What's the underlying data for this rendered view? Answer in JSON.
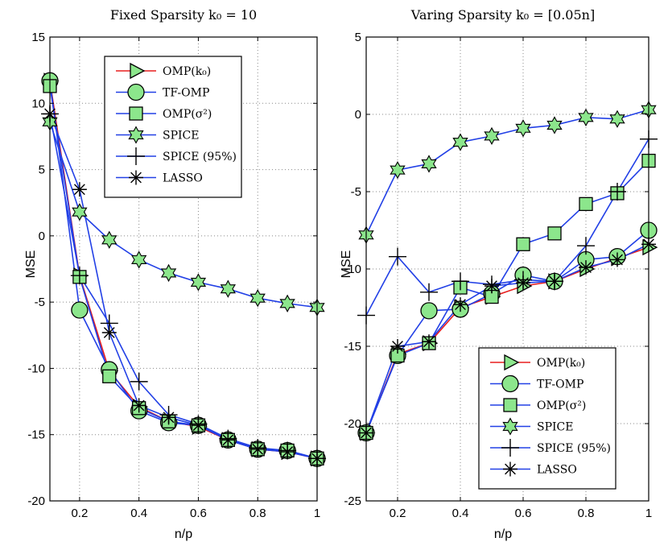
{
  "chart_data": [
    {
      "type": "line",
      "title": "Fixed Sparsity k₀ = 10",
      "xlabel": "n/p",
      "ylabel": "MSE",
      "xlim": [
        0.1,
        1
      ],
      "ylim": [
        -20,
        15
      ],
      "xticks": [
        0.2,
        0.4,
        0.6,
        0.8,
        1
      ],
      "xtick_labels": [
        "0.2",
        "0.4",
        "0.6",
        "0.8",
        "1"
      ],
      "yticks": [
        -20,
        -15,
        -10,
        -5,
        0,
        5,
        10,
        15
      ],
      "ytick_labels": [
        "-20",
        "-15",
        "-10",
        "-5",
        "0",
        "5",
        "10",
        "15"
      ],
      "grid": true,
      "legend_position": "top-right",
      "x": [
        0.1,
        0.2,
        0.3,
        0.4,
        0.5,
        0.6,
        0.7,
        0.8,
        0.9,
        1.0
      ],
      "series": [
        {
          "name": "OMP(k₀)",
          "marker": "triangle-right",
          "line_color": "#e81e1e",
          "values": [
            11.7,
            -3.0,
            -10.2,
            -12.9,
            -14.0,
            -14.4,
            -15.4,
            -16.1,
            -16.3,
            -16.8
          ]
        },
        {
          "name": "TF-OMP",
          "marker": "circle",
          "line_color": "#2240e6",
          "values": [
            11.7,
            -5.6,
            -10.1,
            -13.2,
            -14.1,
            -14.3,
            -15.4,
            -16.1,
            -16.2,
            -16.8
          ]
        },
        {
          "name": "OMP(σ²)",
          "marker": "square",
          "line_color": "#2240e6",
          "values": [
            11.3,
            -3.1,
            -10.6,
            -13.0,
            -14.0,
            -14.3,
            -15.4,
            -16.1,
            -16.2,
            -16.8
          ]
        },
        {
          "name": "SPICE",
          "marker": "star",
          "line_color": "#2240e6",
          "values": [
            8.6,
            1.8,
            -0.3,
            -1.8,
            -2.8,
            -3.5,
            -4.0,
            -4.7,
            -5.1,
            -5.4
          ]
        },
        {
          "name": "SPICE (95%)",
          "marker": "plus",
          "line_color": "#2240e6",
          "values": [
            9.2,
            -3.0,
            -6.6,
            -11.0,
            -13.5,
            -14.2,
            -15.3,
            -16.0,
            -16.2,
            -16.8
          ]
        },
        {
          "name": "LASSO",
          "marker": "asterisk",
          "line_color": "#2240e6",
          "values": [
            9.2,
            3.5,
            -7.3,
            -12.8,
            -13.7,
            -14.3,
            -15.4,
            -16.1,
            -16.3,
            -16.8
          ]
        }
      ]
    },
    {
      "type": "line",
      "title": "Varing Sparsity k₀ = [0.05n]",
      "xlabel": "n/p",
      "ylabel": "MSE",
      "xlim": [
        0.1,
        1
      ],
      "ylim": [
        -25,
        5
      ],
      "xticks": [
        0.2,
        0.4,
        0.6,
        0.8,
        1
      ],
      "xtick_labels": [
        "0.2",
        "0.4",
        "0.6",
        "0.8",
        "1"
      ],
      "yticks": [
        -25,
        -20,
        -15,
        -10,
        -5,
        0,
        5
      ],
      "ytick_labels": [
        "-25",
        "-20",
        "-15",
        "-10",
        "-5",
        "0",
        "5"
      ],
      "grid": true,
      "legend_position": "bottom-right",
      "x": [
        0.1,
        0.2,
        0.3,
        0.4,
        0.5,
        0.6,
        0.7,
        0.8,
        0.9,
        1.0
      ],
      "series": [
        {
          "name": "OMP(k₀)",
          "marker": "triangle-right",
          "line_color": "#e81e1e",
          "values": [
            -20.6,
            -15.5,
            -14.8,
            -12.5,
            -11.8,
            -11.1,
            -10.8,
            -10.0,
            -9.3,
            -8.6
          ]
        },
        {
          "name": "TF-OMP",
          "marker": "circle",
          "line_color": "#2240e6",
          "values": [
            -20.6,
            -15.6,
            -12.7,
            -12.6,
            -11.6,
            -10.4,
            -10.8,
            -9.4,
            -9.2,
            -7.5
          ]
        },
        {
          "name": "OMP(σ²)",
          "marker": "square",
          "line_color": "#2240e6",
          "values": [
            -20.6,
            -15.6,
            -14.8,
            -11.2,
            -11.8,
            -8.4,
            -7.7,
            -5.8,
            -5.1,
            -3.0
          ]
        },
        {
          "name": "SPICE",
          "marker": "star",
          "line_color": "#2240e6",
          "values": [
            -7.8,
            -3.6,
            -3.2,
            -1.8,
            -1.4,
            -0.9,
            -0.7,
            -0.2,
            -0.3,
            0.3
          ]
        },
        {
          "name": "SPICE (95%)",
          "marker": "plus",
          "line_color": "#2240e6",
          "values": [
            -13.0,
            -9.2,
            -11.5,
            -10.8,
            -11.0,
            -10.7,
            -10.8,
            -8.5,
            -5.0,
            -1.6
          ]
        },
        {
          "name": "LASSO",
          "marker": "asterisk",
          "line_color": "#2240e6",
          "values": [
            -20.6,
            -15.0,
            -14.7,
            -12.3,
            -11.1,
            -10.9,
            -10.8,
            -9.9,
            -9.4,
            -8.4
          ]
        }
      ]
    }
  ],
  "colors": {
    "red_line": "#e81e1e",
    "blue_line": "#2240e6",
    "marker_fill": "#8ce68c",
    "grid": "#888888"
  }
}
